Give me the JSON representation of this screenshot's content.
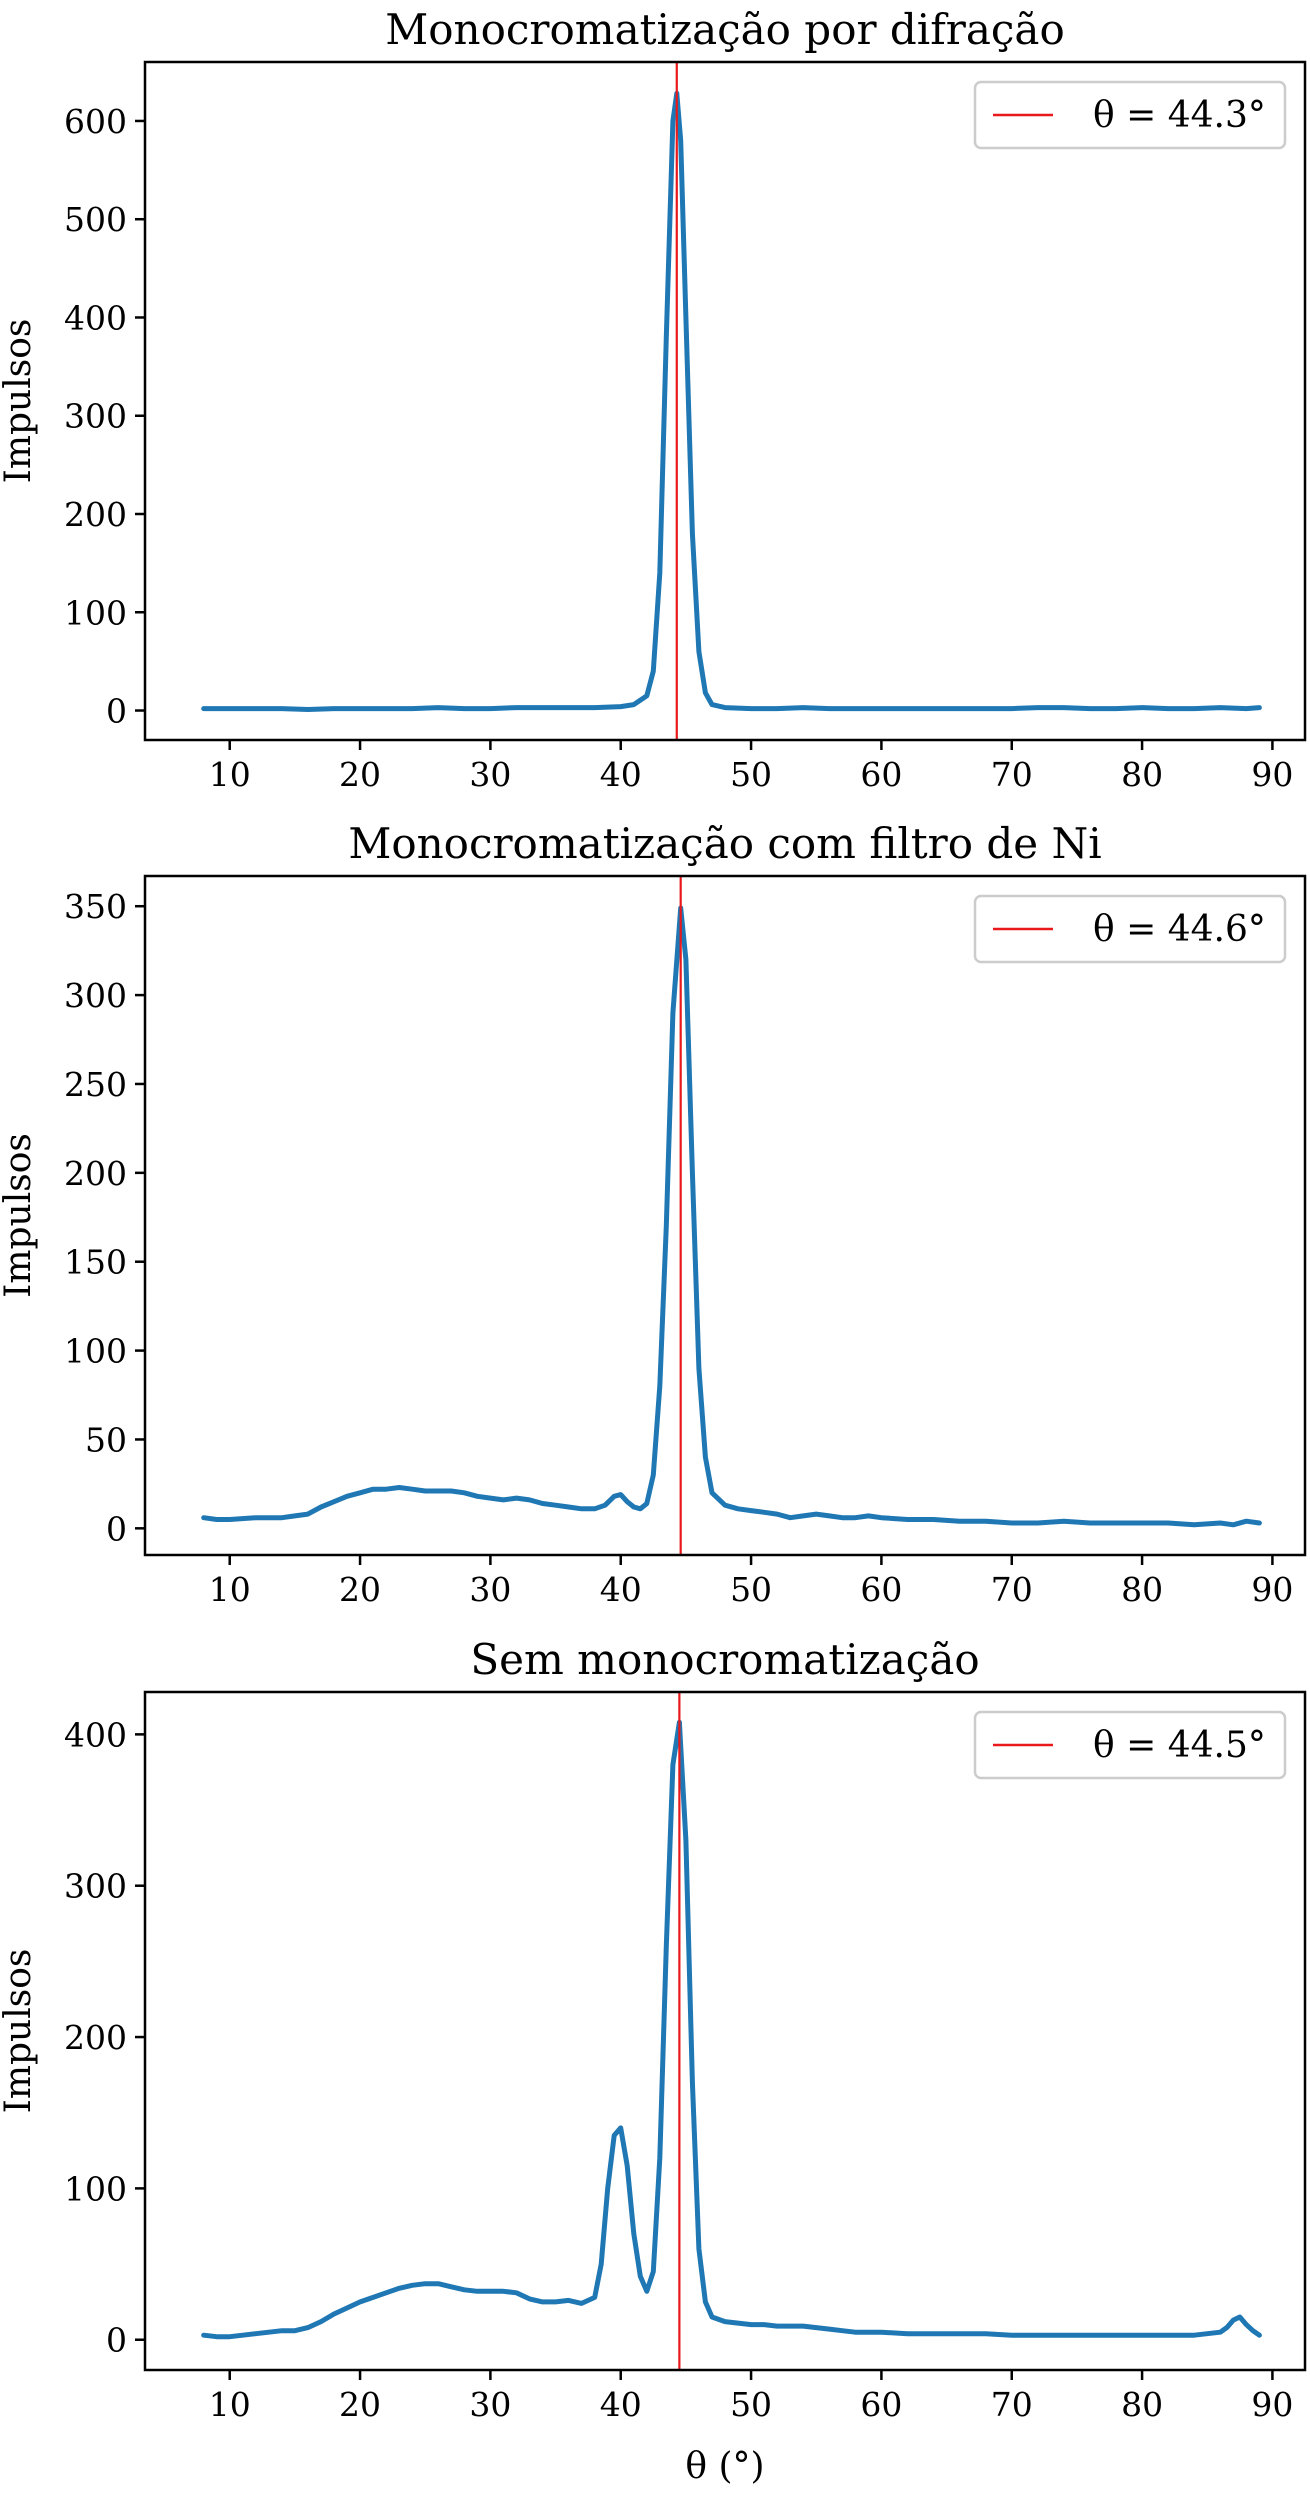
{
  "colors": {
    "series": "#1f77b4",
    "marker": "#e8181b"
  },
  "shared": {
    "xlabel": "θ (°)",
    "xticks": [
      10,
      20,
      30,
      40,
      50,
      60,
      70,
      80,
      90
    ],
    "xlim": [
      3.5,
      92.5
    ]
  },
  "chart_data": [
    {
      "type": "line",
      "title": "Monocromatização por difração",
      "xlabel": "",
      "ylabel": "Impulsos",
      "xlim": [
        3.5,
        92.5
      ],
      "ylim": [
        -30,
        660
      ],
      "yticks": [
        0,
        100,
        200,
        300,
        400,
        500,
        600
      ],
      "grid": false,
      "legend_position": "top-right",
      "marker": {
        "x": 44.3,
        "label": "θ = 44.3°"
      },
      "x": [
        8,
        10,
        12,
        14,
        16,
        18,
        20,
        22,
        24,
        26,
        28,
        30,
        32,
        34,
        36,
        38,
        40,
        41,
        42,
        42.5,
        43,
        43.5,
        44,
        44.3,
        44.6,
        45,
        45.5,
        46,
        46.5,
        47,
        48,
        50,
        52,
        54,
        56,
        58,
        60,
        62,
        64,
        66,
        68,
        70,
        72,
        74,
        76,
        78,
        80,
        82,
        84,
        86,
        88,
        89
      ],
      "y": [
        2,
        2,
        2,
        2,
        1,
        2,
        2,
        2,
        2,
        3,
        2,
        2,
        3,
        3,
        3,
        3,
        4,
        6,
        15,
        40,
        140,
        380,
        600,
        628,
        580,
        400,
        180,
        60,
        18,
        6,
        3,
        2,
        2,
        3,
        2,
        2,
        2,
        2,
        2,
        2,
        2,
        2,
        3,
        3,
        2,
        2,
        3,
        2,
        2,
        3,
        2,
        3
      ]
    },
    {
      "type": "line",
      "title": "Monocromatização com filtro de Ni",
      "xlabel": "",
      "ylabel": "Impulsos",
      "xlim": [
        3.5,
        92.5
      ],
      "ylim": [
        -15,
        367
      ],
      "yticks": [
        0,
        50,
        100,
        150,
        200,
        250,
        300,
        350
      ],
      "grid": false,
      "legend_position": "top-right",
      "marker": {
        "x": 44.6,
        "label": "θ = 44.6°"
      },
      "x": [
        8,
        9,
        10,
        12,
        14,
        15,
        16,
        17,
        18,
        19,
        20,
        21,
        22,
        23,
        24,
        25,
        26,
        27,
        28,
        29,
        30,
        31,
        32,
        33,
        34,
        35,
        36,
        37,
        38,
        38.8,
        39.5,
        40,
        40.5,
        41,
        41.5,
        42,
        42.5,
        43,
        43.5,
        44,
        44.6,
        45,
        45.5,
        46,
        46.5,
        47,
        48,
        49,
        50,
        51,
        52,
        53,
        54,
        55,
        56,
        57,
        58,
        59,
        60,
        62,
        64,
        66,
        68,
        70,
        72,
        74,
        76,
        78,
        80,
        82,
        84,
        86,
        87,
        88,
        89
      ],
      "y": [
        6,
        5,
        5,
        6,
        6,
        7,
        8,
        12,
        15,
        18,
        20,
        22,
        22,
        23,
        22,
        21,
        21,
        21,
        20,
        18,
        17,
        16,
        17,
        16,
        14,
        13,
        12,
        11,
        11,
        13,
        18,
        19,
        15,
        12,
        11,
        14,
        30,
        80,
        170,
        290,
        349,
        320,
        200,
        90,
        40,
        20,
        13,
        11,
        10,
        9,
        8,
        6,
        7,
        8,
        7,
        6,
        6,
        7,
        6,
        5,
        5,
        4,
        4,
        3,
        3,
        4,
        3,
        3,
        3,
        3,
        2,
        3,
        2,
        4,
        3
      ]
    },
    {
      "type": "line",
      "title": "Sem monocromatização",
      "xlabel": "θ (°)",
      "ylabel": "Impulsos",
      "xlim": [
        3.5,
        92.5
      ],
      "ylim": [
        -20,
        428
      ],
      "yticks": [
        0,
        100,
        200,
        300,
        400
      ],
      "grid": false,
      "legend_position": "top-right",
      "marker": {
        "x": 44.5,
        "label": "θ = 44.5°"
      },
      "x": [
        8,
        9,
        10,
        11,
        12,
        13,
        14,
        15,
        16,
        17,
        18,
        19,
        20,
        21,
        22,
        23,
        24,
        25,
        26,
        27,
        28,
        29,
        30,
        31,
        32,
        33,
        34,
        35,
        36,
        37,
        38,
        38.5,
        39,
        39.5,
        40,
        40.5,
        41,
        41.5,
        42,
        42.5,
        43,
        43.5,
        44,
        44.5,
        45,
        45.5,
        46,
        46.5,
        47,
        48,
        49,
        50,
        51,
        52,
        53,
        54,
        55,
        56,
        57,
        58,
        60,
        62,
        64,
        66,
        68,
        70,
        72,
        74,
        76,
        78,
        80,
        82,
        84,
        85,
        86,
        86.5,
        87,
        87.5,
        88,
        88.5,
        89
      ],
      "y": [
        3,
        2,
        2,
        3,
        4,
        5,
        6,
        6,
        8,
        12,
        17,
        21,
        25,
        28,
        31,
        34,
        36,
        37,
        37,
        35,
        33,
        32,
        32,
        32,
        31,
        27,
        25,
        25,
        26,
        24,
        28,
        50,
        100,
        135,
        140,
        115,
        70,
        42,
        32,
        45,
        120,
        260,
        380,
        408,
        330,
        170,
        60,
        25,
        15,
        12,
        11,
        10,
        10,
        9,
        9,
        9,
        8,
        7,
        6,
        5,
        5,
        4,
        4,
        4,
        4,
        3,
        3,
        3,
        3,
        3,
        3,
        3,
        3,
        4,
        5,
        8,
        13,
        15,
        10,
        6,
        3
      ]
    }
  ]
}
